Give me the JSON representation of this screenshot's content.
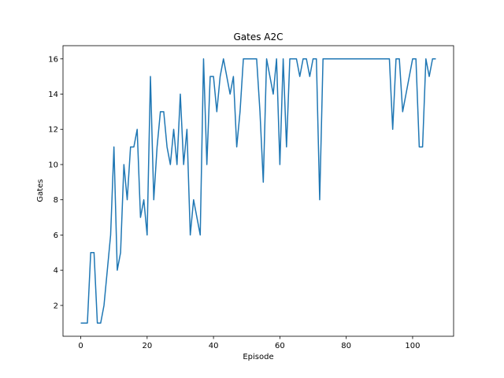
{
  "chart_data": {
    "type": "line",
    "title": "Gates A2C",
    "xlabel": "Episode",
    "ylabel": "Gates",
    "xlim": [
      -5.35,
      112.35
    ],
    "ylim": [
      0.25,
      16.75
    ],
    "xticks": [
      0,
      20,
      40,
      60,
      80,
      100
    ],
    "yticks": [
      2,
      4,
      6,
      8,
      10,
      12,
      14,
      16
    ],
    "grid": false,
    "line_color": "#1f77b4",
    "series": [
      {
        "x": [
          0,
          1,
          2,
          3,
          4,
          5,
          6,
          7,
          8,
          9,
          10,
          11,
          12,
          13,
          14,
          15,
          16,
          17,
          18,
          19,
          20,
          21,
          22,
          23,
          24,
          25,
          26,
          27,
          28,
          29,
          30,
          31,
          32,
          33,
          34,
          35,
          36,
          37,
          38,
          39,
          40,
          41,
          42,
          43,
          44,
          45,
          46,
          47,
          48,
          49,
          50,
          51,
          52,
          53,
          54,
          55,
          56,
          57,
          58,
          59,
          60,
          61,
          62,
          63,
          64,
          65,
          66,
          67,
          68,
          69,
          70,
          71,
          72,
          73,
          74,
          75,
          76,
          77,
          78,
          79,
          80,
          81,
          82,
          83,
          84,
          85,
          86,
          87,
          88,
          89,
          90,
          91,
          92,
          93,
          94,
          95,
          96,
          97,
          98,
          99,
          100,
          101,
          102,
          103,
          104,
          105,
          106,
          107
        ],
        "values": [
          1,
          1,
          1,
          5,
          5,
          1,
          1,
          2,
          4,
          6,
          11,
          4,
          5,
          10,
          8,
          11,
          11,
          12,
          7,
          8,
          6,
          15,
          8,
          11,
          13,
          13,
          11,
          10,
          12,
          10,
          14,
          10,
          12,
          6,
          8,
          7,
          6,
          16,
          10,
          15,
          15,
          13,
          15,
          16,
          15,
          14,
          15,
          11,
          13,
          16,
          16,
          16,
          16,
          16,
          13,
          9,
          16,
          15,
          14,
          16,
          10,
          16,
          11,
          16,
          16,
          16,
          15,
          16,
          16,
          15,
          16,
          16,
          8,
          16,
          16,
          16,
          16,
          16,
          16,
          16,
          16,
          16,
          16,
          16,
          16,
          16,
          16,
          16,
          16,
          16,
          16,
          16,
          16,
          16,
          12,
          16,
          16,
          13,
          14,
          15,
          16,
          16,
          11,
          11,
          16,
          15,
          16,
          16
        ]
      }
    ]
  }
}
